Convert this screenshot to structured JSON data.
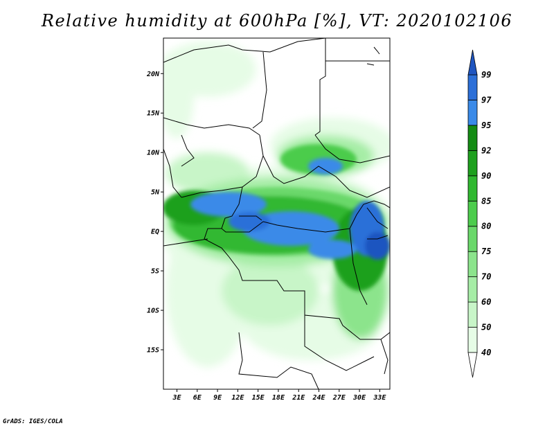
{
  "title": "Relative humidity at 600hPa [%], VT: 2020102106",
  "footer": "GrADS: IGES/COLA",
  "map": {
    "lat_labels": [
      {
        "label": "20N",
        "lat": 20
      },
      {
        "label": "15N",
        "lat": 15
      },
      {
        "label": "10N",
        "lat": 10
      },
      {
        "label": "5N",
        "lat": 5
      },
      {
        "label": "EQ",
        "lat": 0
      },
      {
        "label": "5S",
        "lat": -5
      },
      {
        "label": "10S",
        "lat": -10
      },
      {
        "label": "15S",
        "lat": -15
      }
    ],
    "lon_labels": [
      {
        "label": "3E",
        "lon": 3
      },
      {
        "label": "6E",
        "lon": 6
      },
      {
        "label": "9E",
        "lon": 9
      },
      {
        "label": "12E",
        "lon": 12
      },
      {
        "label": "15E",
        "lon": 15
      },
      {
        "label": "18E",
        "lon": 18
      },
      {
        "label": "21E",
        "lon": 21
      },
      {
        "label": "24E",
        "lon": 24
      },
      {
        "label": "27E",
        "lon": 27
      },
      {
        "label": "30E",
        "lon": 30
      },
      {
        "label": "33E",
        "lon": 33
      }
    ],
    "lon_range": [
      1,
      34.5
    ],
    "lat_range": [
      -20,
      24.5
    ]
  },
  "colorbar": {
    "levels": [
      "40",
      "50",
      "60",
      "70",
      "75",
      "80",
      "85",
      "90",
      "92",
      "95",
      "97",
      "99"
    ],
    "colors": [
      "#ffffff",
      "#e6fce6",
      "#c8f5c8",
      "#a6eda6",
      "#8ce48c",
      "#6ad86a",
      "#4ccc4c",
      "#30b830",
      "#1ea01e",
      "#148c14",
      "#3a8ae8",
      "#2c6fd8",
      "#1f55c0"
    ]
  }
}
